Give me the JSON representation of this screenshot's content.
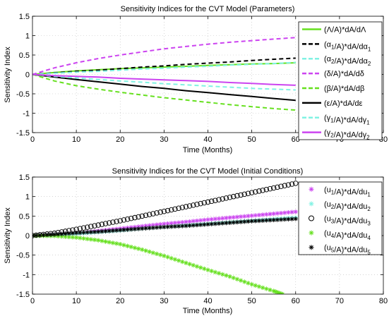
{
  "chart_data": [
    {
      "type": "line",
      "title": "Sensitivity Indices for the CVT Model (Parameters)",
      "xlabel": "Time (Months)",
      "ylabel": "Sensitivity Index",
      "xlim": [
        0,
        80
      ],
      "ylim": [
        -1.5,
        1.5
      ],
      "xticks": [
        "0",
        "10",
        "20",
        "30",
        "40",
        "50",
        "60",
        "70",
        "80"
      ],
      "yticks": [
        "1.5",
        "1",
        "0.5",
        "0",
        "-0.5",
        "-1",
        "-1.5"
      ],
      "grid": true,
      "legend": "right",
      "x": [
        0,
        5,
        10,
        15,
        20,
        25,
        30,
        35,
        40,
        45,
        50,
        55,
        60
      ],
      "series": [
        {
          "name": "(Λ/A)*dA/dΛ",
          "color": "#66e01f",
          "dash": "solid",
          "values": [
            0,
            0.05,
            0.09,
            0.12,
            0.15,
            0.17,
            0.19,
            0.21,
            0.23,
            0.25,
            0.27,
            0.28,
            0.3
          ]
        },
        {
          "name": "(α1/A)*dA/dα1",
          "color": "#000000",
          "dash": "dashed",
          "values": [
            0,
            0.04,
            0.08,
            0.11,
            0.15,
            0.19,
            0.22,
            0.26,
            0.29,
            0.32,
            0.36,
            0.39,
            0.42
          ]
        },
        {
          "name": "(α2/A)*dA/dα2",
          "color": "#80f2e3",
          "dash": "dashed",
          "values": [
            0,
            0.03,
            0.06,
            0.08,
            0.11,
            0.14,
            0.16,
            0.19,
            0.21,
            0.24,
            0.26,
            0.28,
            0.31
          ]
        },
        {
          "name": "(δ/A)*dA/dδ",
          "color": "#cc44f0",
          "dash": "dashed",
          "values": [
            0,
            0.17,
            0.3,
            0.41,
            0.5,
            0.58,
            0.66,
            0.72,
            0.78,
            0.83,
            0.87,
            0.91,
            0.95
          ]
        },
        {
          "name": "(β/A)*dA/dβ",
          "color": "#66e01f",
          "dash": "dashed",
          "values": [
            0,
            -0.17,
            -0.29,
            -0.38,
            -0.46,
            -0.53,
            -0.6,
            -0.66,
            -0.72,
            -0.78,
            -0.83,
            -0.88,
            -0.92
          ]
        },
        {
          "name": "(ε/A)*dA/dε",
          "color": "#000000",
          "dash": "solid",
          "values": [
            0,
            -0.07,
            -0.13,
            -0.19,
            -0.25,
            -0.31,
            -0.36,
            -0.42,
            -0.47,
            -0.52,
            -0.57,
            -0.62,
            -0.67
          ]
        },
        {
          "name": "(γ1/A)*dA/dγ1",
          "color": "#80f2e3",
          "dash": "dashed",
          "values": [
            0,
            -0.05,
            -0.09,
            -0.13,
            -0.17,
            -0.2,
            -0.24,
            -0.27,
            -0.3,
            -0.33,
            -0.36,
            -0.38,
            -0.4
          ]
        },
        {
          "name": "(γ2/A)*dA/dγ2",
          "color": "#cc44f0",
          "dash": "solid",
          "values": [
            0,
            -0.03,
            -0.05,
            -0.07,
            -0.1,
            -0.12,
            -0.14,
            -0.16,
            -0.18,
            -0.21,
            -0.23,
            -0.26,
            -0.28
          ]
        }
      ]
    },
    {
      "type": "scatter",
      "title": "Sensitivity Indices for the CVT Model (Initial Conditions)",
      "xlabel": "Time (Months)",
      "ylabel": "Sensitivity Index",
      "xlim": [
        0,
        80
      ],
      "ylim": [
        -1.5,
        1.5
      ],
      "xticks": [
        "0",
        "10",
        "20",
        "30",
        "40",
        "50",
        "60",
        "70",
        "80"
      ],
      "yticks": [
        "1.5",
        "1",
        "0.5",
        "0",
        "-0.5",
        "-1",
        "-1.5"
      ],
      "grid": true,
      "legend": "top-right",
      "x": [
        0,
        5,
        10,
        15,
        20,
        25,
        30,
        35,
        40,
        45,
        50,
        55,
        60
      ],
      "series": [
        {
          "name": "(u1/A)*dA/du1",
          "color": "#cc44f0",
          "marker": "asterisk",
          "values": [
            0,
            0.02,
            0.06,
            0.12,
            0.18,
            0.24,
            0.3,
            0.35,
            0.41,
            0.46,
            0.51,
            0.56,
            0.61
          ]
        },
        {
          "name": "(u2/A)*dA/du2",
          "color": "#80f2e3",
          "marker": "asterisk",
          "values": [
            0,
            0.02,
            0.05,
            0.09,
            0.13,
            0.18,
            0.22,
            0.26,
            0.3,
            0.34,
            0.38,
            0.42,
            0.46
          ]
        },
        {
          "name": "(u3/A)*dA/du3",
          "color": "#000000",
          "marker": "circle",
          "values": [
            0,
            0.06,
            0.16,
            0.27,
            0.38,
            0.5,
            0.62,
            0.74,
            0.86,
            0.98,
            1.1,
            1.22,
            1.34
          ]
        },
        {
          "name": "(u4/A)*dA/du4",
          "color": "#66e01f",
          "marker": "asterisk",
          "x": [
            0,
            5,
            10,
            15,
            20,
            25,
            30,
            35,
            40,
            45,
            50,
            55,
            57
          ],
          "values": [
            0,
            -0.01,
            -0.05,
            -0.12,
            -0.22,
            -0.36,
            -0.52,
            -0.7,
            -0.88,
            -1.05,
            -1.25,
            -1.42,
            -1.5
          ]
        },
        {
          "name": "(u5/A)*dA/du5",
          "color": "#000000",
          "marker": "asterisk",
          "values": [
            0,
            0.03,
            0.07,
            0.1,
            0.14,
            0.18,
            0.22,
            0.25,
            0.29,
            0.33,
            0.37,
            0.4,
            0.43
          ]
        }
      ]
    }
  ]
}
